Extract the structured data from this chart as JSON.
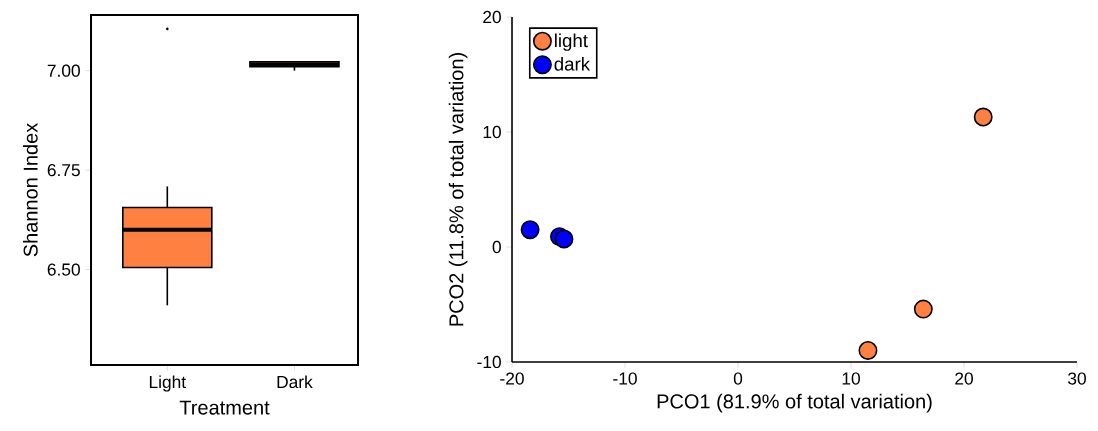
{
  "chart_data": [
    {
      "type": "box",
      "xlabel": "Treatment",
      "ylabel": "Shannon Index",
      "categories": [
        "Light",
        "Dark"
      ],
      "color": "#ff8040",
      "boxes": [
        {
          "low": 6.41,
          "q1": 6.505,
          "median": 6.6,
          "q3": 6.656,
          "high": 6.709,
          "outliers": [
            7.105
          ]
        },
        {
          "low": 7.0,
          "q1": 7.01,
          "median": 7.015,
          "q3": 7.022,
          "high": 7.022
        }
      ],
      "ylim": [
        6.26,
        7.14
      ],
      "yticks": [
        {
          "value": 6.5,
          "label": "6.50"
        },
        {
          "value": 6.75,
          "label": "6.75"
        },
        {
          "value": 7.0,
          "label": "7.00"
        }
      ]
    },
    {
      "type": "scatter",
      "xlabel": "PCO1 (81.9% of total variation)",
      "ylabel": "PCO2 (11.8% of total variation)",
      "marker": "circle",
      "legend": "top left",
      "series": [
        {
          "name": "light",
          "color": "#ff8040",
          "x": [
            21.7,
            16.4,
            11.5
          ],
          "values": [
            11.3,
            -5.4,
            -9.0
          ]
        },
        {
          "name": "dark",
          "color": "#0000ff",
          "x": [
            -18.4,
            -15.8,
            -15.4
          ],
          "values": [
            1.5,
            0.9,
            0.7
          ]
        }
      ],
      "xlim": [
        -20,
        30
      ],
      "xticks": [
        -20,
        -10,
        0,
        10,
        20,
        30
      ],
      "ylim": [
        -10,
        20
      ],
      "yticks": [
        -10,
        0,
        10,
        20
      ]
    }
  ]
}
